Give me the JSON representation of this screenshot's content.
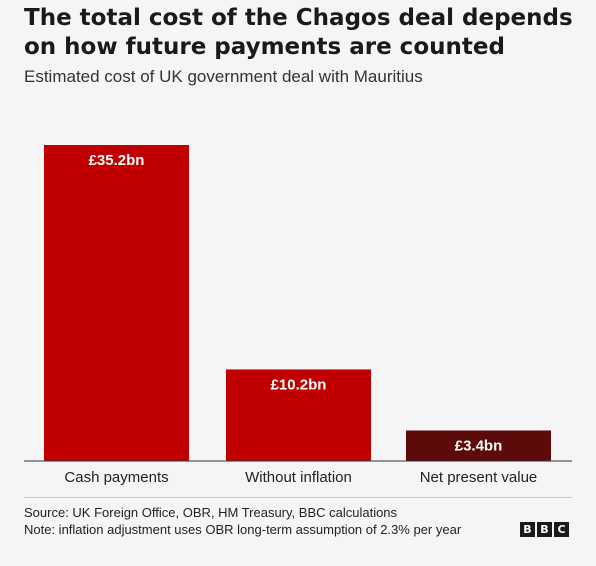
{
  "header": {
    "title": "The total cost of the Chagos deal depends on how future payments are counted",
    "subtitle": "Estimated cost of UK government deal with Mauritius"
  },
  "chart_data": {
    "type": "bar",
    "categories": [
      "Cash payments",
      "Without inflation",
      "Net present value"
    ],
    "values": [
      35.2,
      10.2,
      3.4
    ],
    "data_labels": [
      "£35.2bn",
      "£10.2bn",
      "£3.4bn"
    ],
    "colors": [
      "#c00000",
      "#c00000",
      "#5c0a0a"
    ],
    "label_color": "#ffffff",
    "ylim": [
      0,
      35.2
    ],
    "grid": false,
    "legend": "none",
    "title": "",
    "xlabel": "",
    "ylabel": ""
  },
  "footer": {
    "source": "Source: UK Foreign Office, OBR, HM Treasury, BBC calculations",
    "note": "Note: inflation adjustment uses OBR long-term assumption of 2.3% per year",
    "logo_letters": [
      "B",
      "B",
      "C"
    ]
  }
}
